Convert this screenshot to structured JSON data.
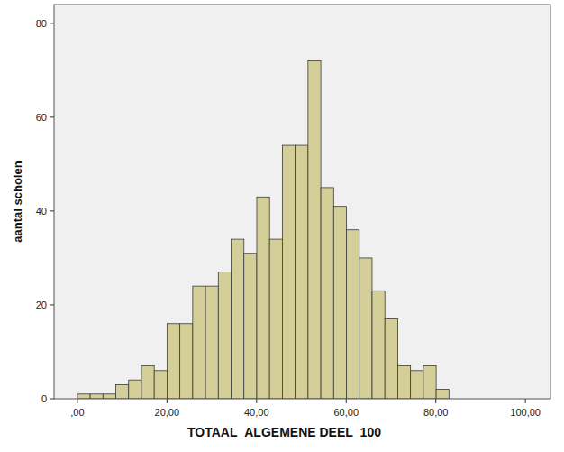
{
  "chart_data": {
    "type": "histogram",
    "x_label": "TOTAAL_ALGEMENE DEEL_100",
    "y_label": "aantal scholen",
    "bins": [
      0,
      2.86,
      5.72,
      8.58,
      11.44,
      14.3,
      17.16,
      20.02,
      22.88,
      25.74,
      28.6,
      31.46,
      34.32,
      37.18,
      40.04,
      42.9,
      45.76,
      48.62,
      51.48,
      54.34,
      57.2,
      60.06,
      62.92,
      65.78,
      68.64,
      71.5,
      74.36,
      77.22,
      80.08,
      82.94
    ],
    "values": [
      1,
      1,
      1,
      3,
      4,
      7,
      6,
      16,
      16,
      24,
      24,
      27,
      34,
      31,
      43,
      34,
      54,
      54,
      72,
      45,
      41,
      36,
      30,
      23,
      17,
      7,
      6,
      7,
      2
    ],
    "color": "#d4cf98",
    "xlim": [
      -5.2,
      105.6
    ],
    "ylim": [
      0,
      84
    ],
    "xticks": [
      {
        "value": 0,
        "label": ",00"
      },
      {
        "value": 20,
        "label": "20,00"
      },
      {
        "value": 40,
        "label": "40,00"
      },
      {
        "value": 60,
        "label": "60,00"
      },
      {
        "value": 80,
        "label": "80,00"
      },
      {
        "value": 100,
        "label": "100,00"
      }
    ],
    "yticks": [
      0,
      20,
      40,
      60,
      80
    ],
    "grid": false
  }
}
